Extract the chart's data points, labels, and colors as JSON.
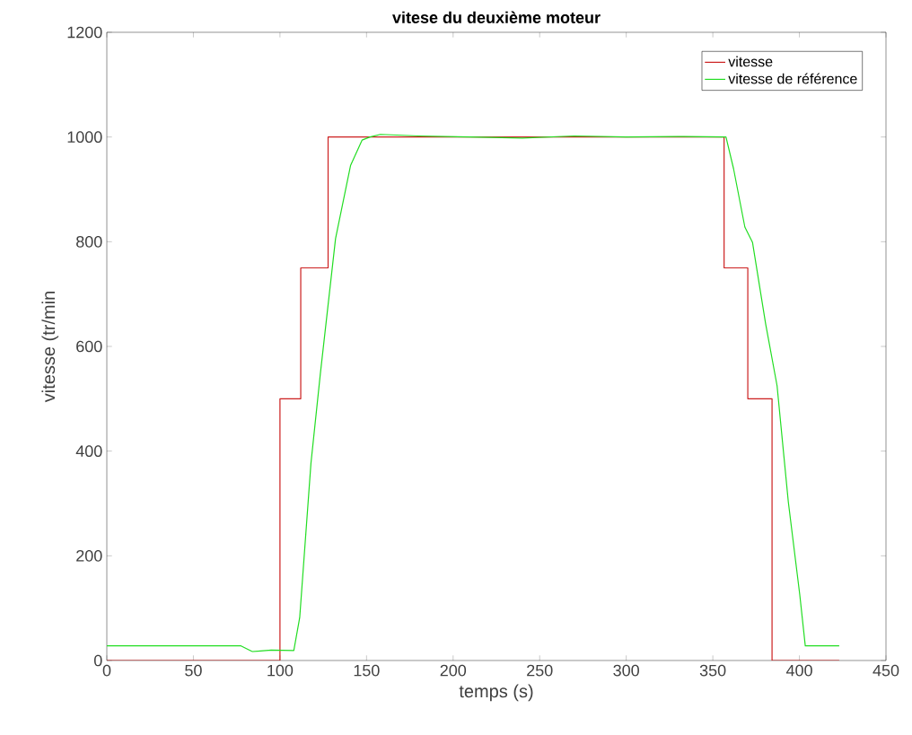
{
  "chart_data": {
    "type": "line",
    "title": "vitese du deuxième moteur",
    "xlabel": "temps (s)",
    "ylabel": "vitesse (tr/min",
    "xlim": [
      0,
      450
    ],
    "xticks": [
      0,
      50,
      100,
      150,
      200,
      250,
      300,
      350,
      400,
      450
    ],
    "ylim": [
      0,
      1200
    ],
    "yticks": [
      0,
      200,
      400,
      600,
      800,
      1000,
      1200
    ],
    "grid": false,
    "legend": "top right",
    "series": [
      {
        "name": "vitesse",
        "color": "#cc1f1f",
        "x": [
          0,
          100,
          100,
          112,
          112,
          127.8,
          127.8,
          356.5,
          356.5,
          370.2,
          370.2,
          384.2,
          384.2,
          423
        ],
        "values": [
          0,
          0,
          500,
          500,
          750,
          750,
          1000,
          1000,
          750,
          750,
          500,
          500,
          0,
          0
        ]
      },
      {
        "name": "vitesse de référence",
        "color": "#22dd22",
        "x": [
          0,
          40,
          77.5,
          84,
          95,
          108,
          111.4,
          117.9,
          123.3,
          132.1,
          140.8,
          147.4,
          152,
          158,
          180,
          210,
          240,
          270,
          300,
          330,
          357.6,
          362,
          368.5,
          372.9,
          380.5,
          387.1,
          393.6,
          400.2,
          403.4,
          423
        ],
        "values": [
          28,
          28,
          28,
          17,
          20,
          19,
          82,
          377,
          547,
          806,
          946,
          994,
          1000,
          1005,
          1002,
          1000,
          998,
          1002,
          1000,
          1001,
          1000,
          939,
          828,
          799,
          643,
          525,
          303,
          126,
          28,
          28
        ]
      }
    ]
  }
}
